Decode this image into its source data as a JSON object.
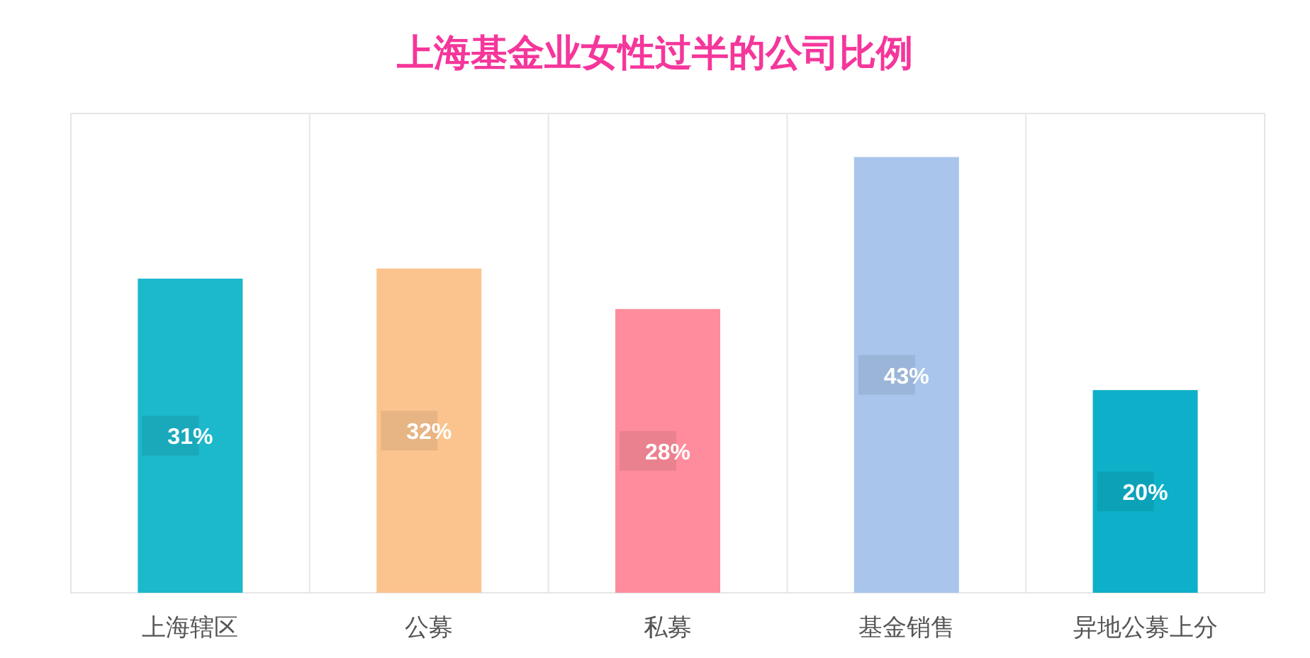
{
  "chart_data": {
    "type": "bar",
    "title": "上海基金业女性过半的公司比例",
    "categories": [
      "上海辖区",
      "公募",
      "私募",
      "基金销售",
      "异地公募上分"
    ],
    "values": [
      31,
      32,
      28,
      43,
      20
    ],
    "value_labels": [
      "31%",
      "32%",
      "28%",
      "43%",
      "20%"
    ],
    "colors": [
      "#1cb8cb",
      "#fbc48f",
      "#fe8c9c",
      "#a9c5ec",
      "#0db0c8"
    ],
    "grid": "x"
  }
}
